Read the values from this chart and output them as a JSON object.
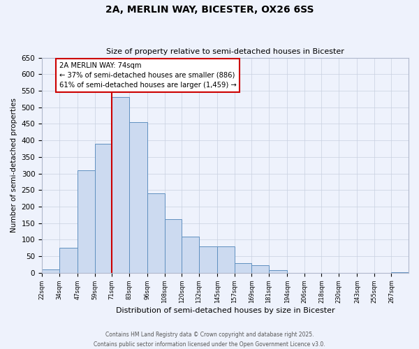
{
  "title": "2A, MERLIN WAY, BICESTER, OX26 6SS",
  "subtitle": "Size of property relative to semi-detached houses in Bicester",
  "xlabel": "Distribution of semi-detached houses by size in Bicester",
  "ylabel": "Number of semi-detached properties",
  "bins": [
    22,
    34,
    47,
    59,
    71,
    83,
    96,
    108,
    120,
    132,
    145,
    157,
    169,
    181,
    194,
    206,
    218,
    230,
    243,
    255,
    267,
    279
  ],
  "counts": [
    10,
    75,
    310,
    390,
    530,
    455,
    240,
    162,
    110,
    80,
    80,
    30,
    22,
    8,
    0,
    0,
    0,
    0,
    0,
    0,
    2
  ],
  "bar_facecolor": "#ccdaf0",
  "bar_edgecolor": "#6090c0",
  "vline_x": 71,
  "vline_color": "#cc0000",
  "annotation_title": "2A MERLIN WAY: 74sqm",
  "annotation_line1": "← 37% of semi-detached houses are smaller (886)",
  "annotation_line2": "61% of semi-detached houses are larger (1,459) →",
  "annotation_box_color": "#cc0000",
  "ylim": [
    0,
    650
  ],
  "yticks": [
    0,
    50,
    100,
    150,
    200,
    250,
    300,
    350,
    400,
    450,
    500,
    550,
    600,
    650
  ],
  "bg_color": "#eef2fc",
  "footer_line1": "Contains HM Land Registry data © Crown copyright and database right 2025.",
  "footer_line2": "Contains public sector information licensed under the Open Government Licence v3.0.",
  "tick_labels": [
    "22sqm",
    "34sqm",
    "47sqm",
    "59sqm",
    "71sqm",
    "83sqm",
    "96sqm",
    "108sqm",
    "120sqm",
    "132sqm",
    "145sqm",
    "157sqm",
    "169sqm",
    "181sqm",
    "194sqm",
    "206sqm",
    "218sqm",
    "230sqm",
    "243sqm",
    "255sqm",
    "267sqm"
  ]
}
